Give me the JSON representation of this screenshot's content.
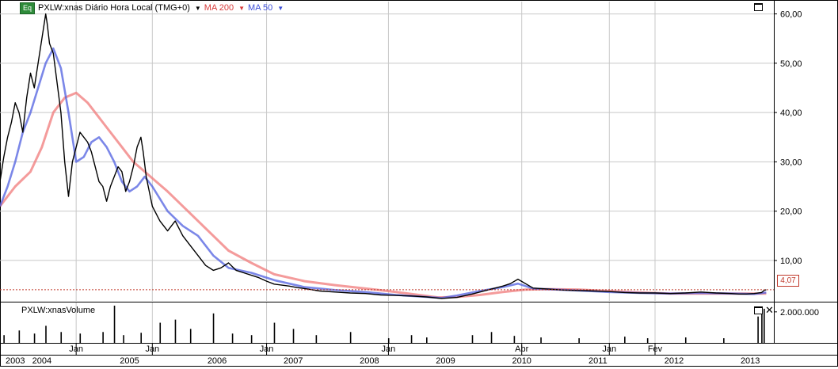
{
  "header": {
    "eq_badge": "Eq",
    "symbol_title": "PXLW:xnas Diário Hora Local (TMG+0)",
    "ma200_label": "MA 200",
    "ma50_label": "MA 50"
  },
  "volume_header": "PXLW:xnasVolume",
  "last_price_label": "4,07",
  "colors": {
    "price": "#000000",
    "ma200": "#f07a7a",
    "ma50": "#4f5fe0",
    "lastline": "#c0392b",
    "grid": "#c8c8c8"
  },
  "icons": [
    "maximize-icon",
    "close-icon",
    "dropdown-arrow-icon"
  ],
  "chart_data": [
    {
      "type": "line",
      "title": "PXLW:xnas Diário Hora Local (TMG+0)",
      "y_tick_labels": [
        "10,00",
        "20,00",
        "30,00",
        "40,00",
        "50,00",
        "60,00"
      ],
      "y_ticks": [
        10,
        20,
        30,
        40,
        50,
        60
      ],
      "ylim": [
        1.8,
        62.5
      ],
      "xlim": [
        2003.0,
        2013.16
      ],
      "grid": true,
      "last_price": 4.07,
      "x_month_labels": [
        {
          "x": 2004.0,
          "label": "Jan"
        },
        {
          "x": 2005.0,
          "label": "Jan"
        },
        {
          "x": 2006.5,
          "label": "Jan"
        },
        {
          "x": 2008.1,
          "label": "Jan"
        },
        {
          "x": 2009.85,
          "label": "Abr"
        },
        {
          "x": 2011.0,
          "label": "Jan"
        },
        {
          "x": 2011.6,
          "label": "Fev"
        }
      ],
      "x_year_labels": [
        {
          "x": 2003.2,
          "label": "2003"
        },
        {
          "x": 2003.55,
          "label": "2004"
        },
        {
          "x": 2004.7,
          "label": "2005"
        },
        {
          "x": 2005.85,
          "label": "2006"
        },
        {
          "x": 2006.85,
          "label": "2007"
        },
        {
          "x": 2007.85,
          "label": "2008"
        },
        {
          "x": 2008.85,
          "label": "2009"
        },
        {
          "x": 2009.85,
          "label": "2010"
        },
        {
          "x": 2010.85,
          "label": "2011"
        },
        {
          "x": 2011.85,
          "label": "2012"
        },
        {
          "x": 2012.85,
          "label": "2013"
        }
      ],
      "series": [
        {
          "name": "PXLW:xnas",
          "color": "#000000",
          "x": [
            2003.0,
            2003.05,
            2003.1,
            2003.15,
            2003.2,
            2003.25,
            2003.3,
            2003.35,
            2003.4,
            2003.45,
            2003.5,
            2003.55,
            2003.6,
            2003.62,
            2003.65,
            2003.7,
            2003.75,
            2003.8,
            2003.85,
            2003.9,
            2003.95,
            2004.0,
            2004.05,
            2004.1,
            2004.15,
            2004.2,
            2004.25,
            2004.3,
            2004.35,
            2004.4,
            2004.45,
            2004.5,
            2004.55,
            2004.6,
            2004.65,
            2004.7,
            2004.75,
            2004.8,
            2004.85,
            2004.88,
            2004.92,
            2005.0,
            2005.1,
            2005.2,
            2005.3,
            2005.4,
            2005.5,
            2005.6,
            2005.7,
            2005.8,
            2005.9,
            2006.0,
            2006.1,
            2006.2,
            2006.3,
            2006.4,
            2006.5,
            2006.6,
            2006.7,
            2006.8,
            2006.9,
            2007.0,
            2007.2,
            2007.4,
            2007.6,
            2007.8,
            2008.0,
            2008.2,
            2008.4,
            2008.6,
            2008.8,
            2009.0,
            2009.2,
            2009.4,
            2009.6,
            2009.7,
            2009.8,
            2010.0,
            2010.2,
            2010.4,
            2010.6,
            2010.8,
            2011.0,
            2011.2,
            2011.4,
            2011.6,
            2011.8,
            2012.0,
            2012.2,
            2012.4,
            2012.6,
            2012.7,
            2012.8,
            2012.9,
            2013.0,
            2013.03,
            2013.06
          ],
          "values": [
            26,
            31,
            35,
            38,
            42,
            40,
            36,
            43,
            48,
            45,
            50,
            55,
            60,
            58,
            54,
            52,
            46,
            40,
            30,
            23,
            30,
            33,
            36,
            35,
            34,
            32,
            29,
            26,
            25,
            22,
            25,
            27,
            29,
            28,
            24,
            26,
            29,
            33,
            35,
            32,
            27,
            21,
            18,
            16,
            18,
            15,
            13,
            11,
            9,
            8,
            8.5,
            9.5,
            8,
            7.5,
            7,
            6.5,
            5.8,
            5.2,
            5.0,
            4.8,
            4.5,
            4.3,
            3.8,
            3.6,
            3.4,
            3.3,
            3.0,
            2.9,
            2.8,
            2.6,
            2.3,
            2.5,
            3.2,
            4.0,
            4.8,
            5.3,
            6.2,
            4.4,
            4.2,
            4.0,
            3.9,
            3.8,
            3.7,
            3.5,
            3.4,
            3.4,
            3.3,
            3.4,
            3.6,
            3.4,
            3.3,
            3.2,
            3.2,
            3.3,
            3.5,
            3.9,
            4.07
          ]
        },
        {
          "name": "MA 200",
          "color": "#f07a7a",
          "x": [
            2003.0,
            2003.2,
            2003.4,
            2003.55,
            2003.7,
            2003.85,
            2004.0,
            2004.15,
            2004.3,
            2004.45,
            2004.6,
            2004.75,
            2004.9,
            2005.05,
            2005.2,
            2005.4,
            2005.6,
            2005.8,
            2006.0,
            2006.3,
            2006.6,
            2007.0,
            2007.4,
            2007.8,
            2008.2,
            2008.5,
            2008.75,
            2009.0,
            2009.3,
            2009.6,
            2009.9,
            2010.2,
            2010.6,
            2011.0,
            2011.4,
            2011.8,
            2012.2,
            2012.6,
            2013.0,
            2013.06
          ],
          "values": [
            21,
            25,
            28,
            33,
            40,
            43,
            44,
            42,
            39,
            36,
            33,
            30,
            28,
            26,
            24,
            21,
            18,
            15,
            12,
            9.5,
            7.2,
            5.8,
            5.0,
            4.3,
            3.6,
            3.0,
            2.5,
            2.6,
            3.0,
            3.6,
            4.1,
            4.2,
            4.1,
            3.8,
            3.5,
            3.3,
            3.3,
            3.3,
            3.3,
            3.3
          ]
        },
        {
          "name": "MA 50",
          "color": "#4f5fe0",
          "x": [
            2003.0,
            2003.1,
            2003.2,
            2003.3,
            2003.4,
            2003.5,
            2003.6,
            2003.7,
            2003.8,
            2003.9,
            2004.0,
            2004.1,
            2004.2,
            2004.3,
            2004.4,
            2004.5,
            2004.6,
            2004.7,
            2004.8,
            2004.9,
            2005.0,
            2005.2,
            2005.4,
            2005.6,
            2005.8,
            2006.0,
            2006.3,
            2006.6,
            2007.0,
            2007.4,
            2007.8,
            2008.2,
            2008.6,
            2008.8,
            2009.0,
            2009.3,
            2009.6,
            2009.8,
            2010.0,
            2010.3,
            2010.6,
            2011.0,
            2011.4,
            2011.8,
            2012.2,
            2012.6,
            2012.9,
            2013.06
          ],
          "values": [
            21,
            25,
            30,
            36,
            40,
            45,
            50,
            53,
            49,
            40,
            30,
            31,
            34,
            35,
            33,
            30,
            26,
            24,
            25,
            27,
            25,
            20,
            17,
            15,
            11,
            8.5,
            7.5,
            6.0,
            4.6,
            4.0,
            3.6,
            3.0,
            2.6,
            2.4,
            2.9,
            3.8,
            4.6,
            5.3,
            4.3,
            4.1,
            3.9,
            3.6,
            3.4,
            3.3,
            3.4,
            3.3,
            3.2,
            3.5
          ]
        }
      ]
    },
    {
      "type": "bar",
      "title": "PXLW:xnasVolume",
      "y_tick_labels": [
        "2.000.000"
      ],
      "y_ticks": [
        2000000
      ],
      "ylim": [
        0,
        2400000
      ],
      "x": [
        2003.05,
        2003.25,
        2003.45,
        2003.6,
        2003.8,
        2004.05,
        2004.35,
        2004.5,
        2004.62,
        2004.85,
        2005.1,
        2005.3,
        2005.5,
        2005.8,
        2006.05,
        2006.3,
        2006.6,
        2006.85,
        2007.15,
        2007.6,
        2008.1,
        2008.4,
        2008.6,
        2009.2,
        2009.45,
        2009.75,
        2010.1,
        2010.6,
        2011.2,
        2011.5,
        2012.0,
        2012.5,
        2012.95,
        2013.0,
        2013.03
      ],
      "values": [
        500000,
        800000,
        600000,
        1100000,
        700000,
        600000,
        700000,
        2400000,
        500000,
        650000,
        1300000,
        1500000,
        900000,
        1900000,
        600000,
        500000,
        1300000,
        900000,
        500000,
        700000,
        300000,
        500000,
        350000,
        500000,
        700000,
        450000,
        350000,
        300000,
        400000,
        300000,
        350000,
        300000,
        1700000,
        2300000,
        2200000
      ]
    }
  ]
}
